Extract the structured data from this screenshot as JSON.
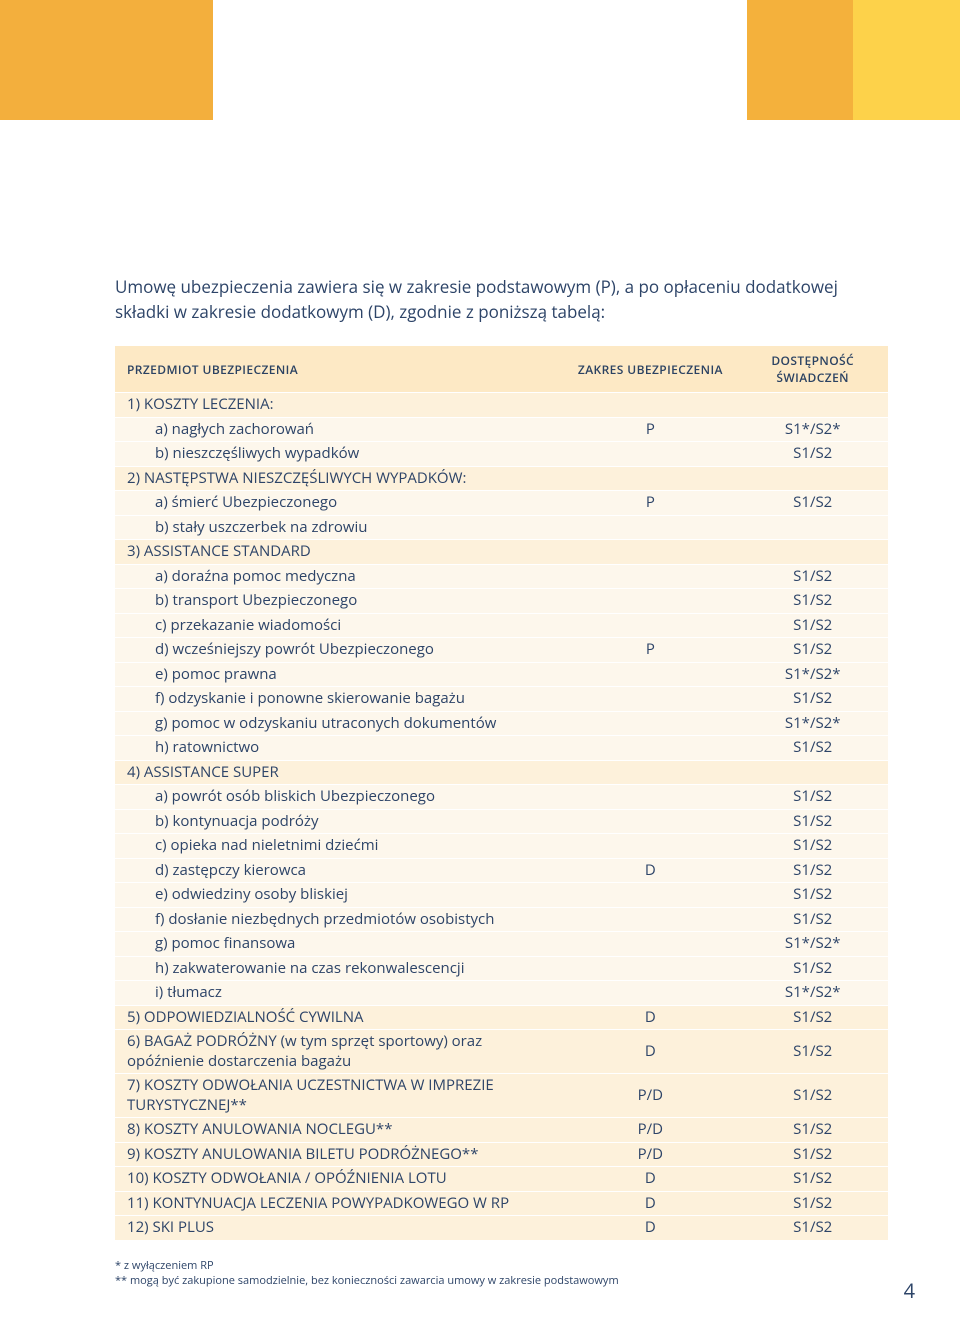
{
  "header_colors": [
    "#f3af3d",
    "#f3af3d",
    "#ffffff",
    "#ffffff",
    "#ffffff",
    "#ffffff",
    "#ffffff",
    "#f4b13c",
    "#fdd24a"
  ],
  "intro": "Umowę ubezpieczenia zawiera się w zakresie podstawowym (P), a po opłaceniu dodatkowej składki w zakresie dodatkowym (D), zgodnie z poniższą tabelą:",
  "columns": {
    "c1": "PRZEDMIOT UBEZPIECZENIA",
    "c2": "ZAKRES UBEZPIECZENIA",
    "c3": "DOSTĘPNOŚĆ ŚWIADCZEŃ"
  },
  "rows": [
    {
      "type": "group",
      "c1": "1) KOSZTY LECZENIA:",
      "c2": "",
      "c3": ""
    },
    {
      "type": "item",
      "c1": "a) nagłych zachorowań",
      "c2": "P",
      "c3": "S1*/S2*"
    },
    {
      "type": "item",
      "c1": "b) nieszczęśliwych wypadków",
      "c2": "",
      "c3": "S1/S2"
    },
    {
      "type": "group",
      "c1": "2) NASTĘPSTWA NIESZCZĘŚLIWYCH WYPADKÓW:",
      "c2": "",
      "c3": ""
    },
    {
      "type": "item",
      "c1": "a) śmierć Ubezpieczonego",
      "c2": "P",
      "c3": "S1/S2"
    },
    {
      "type": "item",
      "c1": "b) stały uszczerbek na zdrowiu",
      "c2": "",
      "c3": ""
    },
    {
      "type": "group",
      "c1": "3) ASSISTANCE STANDARD",
      "c2": "",
      "c3": ""
    },
    {
      "type": "item",
      "c1": "a) doraźna pomoc medyczna",
      "c2": "",
      "c3": "S1/S2"
    },
    {
      "type": "item",
      "c1": "b) transport Ubezpieczonego",
      "c2": "",
      "c3": "S1/S2"
    },
    {
      "type": "item",
      "c1": "c) przekazanie wiadomości",
      "c2": "",
      "c3": "S1/S2"
    },
    {
      "type": "item",
      "c1": "d) wcześniejszy powrót Ubezpieczonego",
      "c2": "P",
      "c3": "S1/S2"
    },
    {
      "type": "item",
      "c1": "e) pomoc prawna",
      "c2": "",
      "c3": "S1*/S2*"
    },
    {
      "type": "item",
      "c1": "f) odzyskanie i ponowne skierowanie bagażu",
      "c2": "",
      "c3": "S1/S2"
    },
    {
      "type": "item",
      "c1": "g) pomoc w odzyskaniu utraconych dokumentów",
      "c2": "",
      "c3": "S1*/S2*"
    },
    {
      "type": "item",
      "c1": "h) ratownictwo",
      "c2": "",
      "c3": "S1/S2"
    },
    {
      "type": "group",
      "c1": "4) ASSISTANCE SUPER",
      "c2": "",
      "c3": ""
    },
    {
      "type": "item",
      "c1": "a) powrót osób bliskich Ubezpieczonego",
      "c2": "",
      "c3": "S1/S2"
    },
    {
      "type": "item",
      "c1": "b) kontynuacja podróży",
      "c2": "",
      "c3": "S1/S2"
    },
    {
      "type": "item",
      "c1": "c) opieka nad nieletnimi dziećmi",
      "c2": "",
      "c3": "S1/S2"
    },
    {
      "type": "item",
      "c1": "d) zastępczy kierowca",
      "c2": "D",
      "c3": "S1/S2"
    },
    {
      "type": "item",
      "c1": "e) odwiedziny osoby bliskiej",
      "c2": "",
      "c3": "S1/S2"
    },
    {
      "type": "item",
      "c1": "f) dosłanie niezbędnych przedmiotów osobistych",
      "c2": "",
      "c3": "S1/S2"
    },
    {
      "type": "item",
      "c1": "g) pomoc finansowa",
      "c2": "",
      "c3": "S1*/S2*"
    },
    {
      "type": "item",
      "c1": "h) zakwaterowanie na czas rekonwalescencji",
      "c2": "",
      "c3": "S1/S2"
    },
    {
      "type": "item",
      "c1": "i) tłumacz",
      "c2": "",
      "c3": "S1*/S2*"
    },
    {
      "type": "group",
      "c1": "5) ODPOWIEDZIALNOŚĆ CYWILNA",
      "c2": "D",
      "c3": "S1/S2"
    },
    {
      "type": "group",
      "c1": "6) BAGAŻ PODRÓŻNY (w tym sprzęt sportowy) oraz opóźnienie dostarczenia bagażu",
      "c2": "D",
      "c3": "S1/S2"
    },
    {
      "type": "group",
      "c1": "7) KOSZTY ODWOŁANIA UCZESTNICTWA W IMPREZIE TURYSTYCZNEJ**",
      "c2": "P/D",
      "c3": "S1/S2"
    },
    {
      "type": "group",
      "c1": "8) KOSZTY ANULOWANIA NOCLEGU**",
      "c2": "P/D",
      "c3": "S1/S2"
    },
    {
      "type": "group",
      "c1": "9) KOSZTY ANULOWANIA BILETU PODRÓŻNEGO**",
      "c2": "P/D",
      "c3": "S1/S2"
    },
    {
      "type": "group",
      "c1": "10) KOSZTY ODWOŁANIA / OPÓŹNIENIA LOTU",
      "c2": "D",
      "c3": "S1/S2"
    },
    {
      "type": "group",
      "c1": "11) KONTYNUACJA LECZENIA POWYPADKOWEGO W RP",
      "c2": "D",
      "c3": "S1/S2"
    },
    {
      "type": "group",
      "c1": "12) SKI PLUS",
      "c2": "D",
      "c3": "S1/S2"
    }
  ],
  "footnotes": {
    "f1": "* z wyłączeniem RP",
    "f2": "** mogą być zakupione samodzielnie, bez konieczności zawarcia umowy w zakresie podstawowym"
  },
  "page_number": "4",
  "table_colors": {
    "header_bg": "#fde9c5",
    "group_bg": "#fdf1db",
    "item_bg": "#fdf7ec",
    "text": "#2d4468"
  }
}
